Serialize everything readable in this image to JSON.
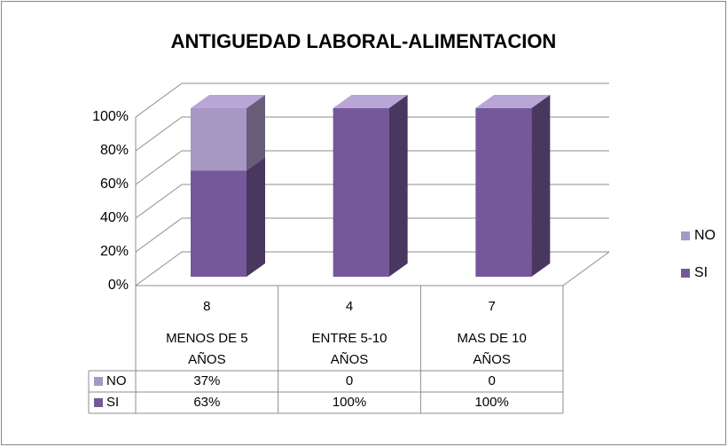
{
  "chart_data": {
    "type": "bar",
    "stacked": true,
    "three_d": true,
    "title": "ANTIGUEDAD LABORAL-ALIMENTACION",
    "categories": [
      "MENOS DE 5 AÑOS",
      "ENTRE 5-10 AÑOS",
      "MAS DE 10 AÑOS"
    ],
    "counts": [
      8,
      4,
      7
    ],
    "series": [
      {
        "name": "SI",
        "color": "#75589a",
        "values": [
          63,
          100,
          100
        ],
        "value_labels": [
          "63%",
          "100%",
          "100%"
        ]
      },
      {
        "name": "NO",
        "color": "#a797c3",
        "values": [
          37,
          0,
          0
        ],
        "value_labels": [
          "37%",
          "0",
          "0"
        ]
      }
    ],
    "ylim": [
      0,
      100
    ],
    "yticks": [
      {
        "value": 0,
        "label": "0%"
      },
      {
        "value": 20,
        "label": "20%"
      },
      {
        "value": 40,
        "label": "40%"
      },
      {
        "value": 60,
        "label": "60%"
      },
      {
        "value": 80,
        "label": "80%"
      },
      {
        "value": 100,
        "label": "100%"
      }
    ],
    "grid": true,
    "legend": "right",
    "data_table": true
  }
}
